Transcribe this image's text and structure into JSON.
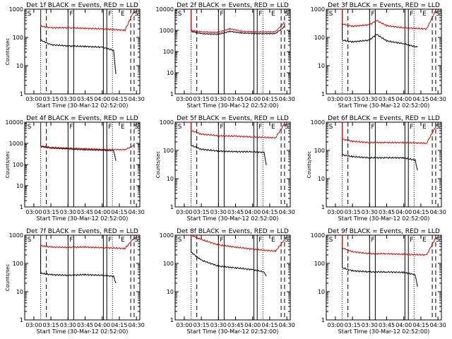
{
  "chart_data": [
    {
      "type": "line",
      "title": "Det 1f BLACK = Events, RED = LLD",
      "xlabel": "Start Time (30-Mar-12 02:52:00)",
      "ylabel": "Counts/sec",
      "yscale": "log",
      "ylim": [
        1,
        1000
      ],
      "xtick_labels": [
        "03:00",
        "03:15",
        "03:30",
        "03:45",
        "04:00",
        "04:15",
        "04:30"
      ],
      "ytick_labels": [
        "1",
        "10",
        "100",
        "1000"
      ],
      "markers": [
        {
          "label": "S",
          "x": "02:53"
        },
        {
          "label": "F",
          "x": "03:30"
        },
        {
          "label": "F",
          "x": "04:04"
        },
        {
          "label": "E",
          "x": "04:15"
        },
        {
          "label": "S",
          "x": "04:30"
        }
      ],
      "series": [
        {
          "name": "Events",
          "color": "#000000",
          "x": [
            "03:06",
            "03:15",
            "03:30",
            "03:45",
            "04:00",
            "04:10",
            "04:12"
          ],
          "values": [
            80,
            55,
            50,
            48,
            45,
            35,
            5
          ]
        },
        {
          "name": "LLD",
          "color": "#e00000",
          "x": [
            "03:06",
            "03:15",
            "03:30",
            "03:45",
            "04:00",
            "04:20",
            "04:28"
          ],
          "values": [
            250,
            220,
            220,
            210,
            200,
            180,
            900
          ]
        }
      ]
    },
    {
      "type": "line",
      "title": "Det 2f BLACK = Events, RED = LLD",
      "xlabel": "Start Time (30-Mar-12 02:52:00)",
      "ylabel": "",
      "yscale": "log",
      "ylim": [
        1,
        10000
      ],
      "xtick_labels": [
        "03:00",
        "03:15",
        "03:30",
        "03:45",
        "04:00",
        "04:15",
        "04:30"
      ],
      "ytick_labels": [
        "1",
        "10",
        "100",
        "1000",
        "10000"
      ],
      "markers": [
        {
          "label": "S",
          "x": "02:53"
        },
        {
          "label": "F",
          "x": "03:30"
        },
        {
          "label": "F",
          "x": "04:04"
        },
        {
          "label": "E",
          "x": "04:15"
        },
        {
          "label": "S",
          "x": "04:30"
        }
      ],
      "series": [
        {
          "name": "Events",
          "color": "#000000",
          "x": [
            "03:06",
            "03:15",
            "03:30",
            "03:40",
            "03:50",
            "04:05",
            "04:20",
            "04:28"
          ],
          "values": [
            900,
            700,
            650,
            900,
            750,
            700,
            700,
            1500
          ]
        },
        {
          "name": "LLD",
          "color": "#e00000",
          "x": [
            "03:06",
            "03:15",
            "03:30",
            "03:40",
            "03:50",
            "04:05",
            "04:20",
            "04:28"
          ],
          "values": [
            1000,
            850,
            800,
            1200,
            900,
            850,
            850,
            2500
          ]
        }
      ]
    },
    {
      "type": "line",
      "title": "Det 3f BLACK = Events, RED = LLD",
      "xlabel": "Start Time (30-Mar-12 02:52:00)",
      "ylabel": "",
      "yscale": "log",
      "ylim": [
        1,
        1000
      ],
      "xtick_labels": [
        "03:00",
        "03:15",
        "03:30",
        "03:45",
        "04:00",
        "04:15",
        "04:30"
      ],
      "ytick_labels": [
        "1",
        "10",
        "100",
        "1000"
      ],
      "markers": [
        {
          "label": "S",
          "x": "02:53"
        },
        {
          "label": "F",
          "x": "03:30"
        },
        {
          "label": "F",
          "x": "04:04"
        },
        {
          "label": "E",
          "x": "04:15"
        },
        {
          "label": "S",
          "x": "04:30"
        }
      ],
      "series": [
        {
          "name": "Events",
          "color": "#000000",
          "x": [
            "03:06",
            "03:15",
            "03:30",
            "03:36",
            "03:45",
            "04:00",
            "04:12"
          ],
          "values": [
            80,
            70,
            80,
            130,
            75,
            60,
            45
          ]
        },
        {
          "name": "LLD",
          "color": "#e00000",
          "x": [
            "03:06",
            "03:15",
            "03:30",
            "03:36",
            "03:45",
            "04:00",
            "04:20",
            "04:28"
          ],
          "values": [
            300,
            250,
            280,
            400,
            260,
            220,
            200,
            900
          ]
        }
      ]
    },
    {
      "type": "line",
      "title": "Det 4f BLACK = Events, RED = LLD",
      "xlabel": "Start Time (30-Mar-12 02:52:00)",
      "ylabel": "Counts/sec",
      "yscale": "log",
      "ylim": [
        1,
        10000
      ],
      "xtick_labels": [
        "03:00",
        "03:15",
        "03:30",
        "03:45",
        "04:00",
        "04:15",
        "04:30"
      ],
      "ytick_labels": [
        "1",
        "10",
        "100",
        "1000",
        "10000"
      ],
      "markers": [
        {
          "label": "S",
          "x": "02:53"
        },
        {
          "label": "F",
          "x": "03:30"
        },
        {
          "label": "F",
          "x": "04:04"
        },
        {
          "label": "E",
          "x": "04:15"
        },
        {
          "label": "S",
          "x": "04:30"
        }
      ],
      "series": [
        {
          "name": "Events",
          "color": "#000000",
          "x": [
            "03:06",
            "03:15",
            "03:30",
            "03:45",
            "04:00",
            "04:10",
            "04:12"
          ],
          "values": [
            700,
            600,
            550,
            500,
            480,
            450,
            150
          ]
        },
        {
          "name": "LLD",
          "color": "#e00000",
          "x": [
            "03:06",
            "03:15",
            "03:30",
            "03:45",
            "04:00",
            "04:20",
            "04:28"
          ],
          "values": [
            750,
            650,
            600,
            560,
            520,
            500,
            800
          ]
        }
      ]
    },
    {
      "type": "line",
      "title": "Det 5f BLACK = Events, RED = LLD",
      "xlabel": "Start Time (30-Mar-12 02:52:00)",
      "ylabel": "Counts/sec",
      "yscale": "log",
      "ylim": [
        1,
        1000
      ],
      "xtick_labels": [
        "03:00",
        "03:15",
        "03:30",
        "03:45",
        "04:00",
        "04:15",
        "04:30"
      ],
      "ytick_labels": [
        "1",
        "10",
        "100",
        "1000"
      ],
      "markers": [
        {
          "label": "S",
          "x": "02:53"
        },
        {
          "label": "F",
          "x": "03:30"
        },
        {
          "label": "F",
          "x": "04:04"
        },
        {
          "label": "E",
          "x": "04:15"
        },
        {
          "label": "S",
          "x": "04:30"
        }
      ],
      "series": [
        {
          "name": "Events",
          "color": "#000000",
          "x": [
            "03:06",
            "03:15",
            "03:30",
            "03:45",
            "04:00",
            "04:10",
            "04:12"
          ],
          "values": [
            150,
            110,
            95,
            90,
            90,
            85,
            30
          ]
        },
        {
          "name": "LLD",
          "color": "#e00000",
          "x": [
            "03:06",
            "03:15",
            "03:30",
            "03:45",
            "04:00",
            "04:20",
            "04:28"
          ],
          "values": [
            500,
            380,
            330,
            320,
            300,
            280,
            900
          ]
        }
      ]
    },
    {
      "type": "line",
      "title": "Det 6f BLACK = Events, RED = LLD",
      "xlabel": "Start Time (30-Mar-12 02:52:00)",
      "ylabel": "Counts/sec",
      "yscale": "log",
      "ylim": [
        1,
        1000
      ],
      "xtick_labels": [
        "03:00",
        "03:15",
        "03:30",
        "03:45",
        "04:00",
        "04:15",
        "04:30"
      ],
      "ytick_labels": [
        "1",
        "10",
        "100",
        "1000"
      ],
      "markers": [
        {
          "label": "S",
          "x": "02:53"
        },
        {
          "label": "F",
          "x": "03:30"
        },
        {
          "label": "F",
          "x": "04:04"
        },
        {
          "label": "E",
          "x": "04:15"
        },
        {
          "label": "S",
          "x": "04:30"
        }
      ],
      "series": [
        {
          "name": "Events",
          "color": "#000000",
          "x": [
            "03:06",
            "03:15",
            "03:30",
            "03:45",
            "04:00",
            "04:10",
            "04:12"
          ],
          "values": [
            70,
            60,
            55,
            55,
            55,
            45,
            20
          ]
        },
        {
          "name": "LLD",
          "color": "#e00000",
          "x": [
            "03:06",
            "03:15",
            "03:30",
            "03:45",
            "04:00",
            "04:20",
            "04:28"
          ],
          "values": [
            250,
            210,
            190,
            190,
            190,
            180,
            700
          ]
        }
      ]
    },
    {
      "type": "line",
      "title": "Det 7f BLACK = Events, RED = LLD",
      "xlabel": "Start Time (30-Mar-12 02:52:00)",
      "ylabel": "Counts/sec",
      "yscale": "log",
      "ylim": [
        1,
        1000
      ],
      "xtick_labels": [
        "03:00",
        "03:15",
        "03:30",
        "03:45",
        "04:00",
        "04:15",
        "04:30"
      ],
      "ytick_labels": [
        "1",
        "10",
        "100",
        "1000"
      ],
      "markers": [
        {
          "label": "S",
          "x": "02:53"
        },
        {
          "label": "F",
          "x": "03:30"
        },
        {
          "label": "F",
          "x": "04:04"
        },
        {
          "label": "E",
          "x": "04:15"
        },
        {
          "label": "S",
          "x": "04:30"
        }
      ],
      "series": [
        {
          "name": "Events",
          "color": "#000000",
          "x": [
            "03:06",
            "03:15",
            "03:30",
            "03:45",
            "04:00",
            "04:10",
            "04:12"
          ],
          "values": [
            45,
            40,
            38,
            40,
            38,
            35,
            20
          ]
        },
        {
          "name": "LLD",
          "color": "#e00000",
          "x": [
            "03:06",
            "03:15",
            "03:30",
            "03:45",
            "04:00",
            "04:20",
            "04:28"
          ],
          "values": [
            420,
            380,
            370,
            380,
            360,
            340,
            800
          ]
        }
      ]
    },
    {
      "type": "line",
      "title": "Det 8f BLACK = Events, RED = LLD",
      "xlabel": "Start Time (30-Mar-12 02:52:00)",
      "ylabel": "",
      "yscale": "log",
      "ylim": [
        1,
        1000
      ],
      "xtick_labels": [
        "03:00",
        "03:15",
        "03:30",
        "03:45",
        "04:00",
        "04:15",
        "04:30"
      ],
      "ytick_labels": [
        "1",
        "10",
        "100",
        "1000"
      ],
      "markers": [
        {
          "label": "S",
          "x": "02:53"
        },
        {
          "label": "F",
          "x": "03:30"
        },
        {
          "label": "F",
          "x": "04:04"
        },
        {
          "label": "E",
          "x": "04:15"
        },
        {
          "label": "S",
          "x": "04:30"
        }
      ],
      "series": [
        {
          "name": "Events",
          "color": "#000000",
          "x": [
            "03:06",
            "03:15",
            "03:30",
            "03:45",
            "04:00",
            "04:10",
            "04:12"
          ],
          "values": [
            250,
            130,
            80,
            70,
            60,
            50,
            35
          ]
        },
        {
          "name": "LLD",
          "color": "#e00000",
          "x": [
            "03:06",
            "03:15",
            "03:30",
            "03:45",
            "04:00",
            "04:20",
            "04:28"
          ],
          "values": [
            1000,
            700,
            450,
            380,
            320,
            270,
            700
          ]
        }
      ]
    },
    {
      "type": "line",
      "title": "Det 9f BLACK = Events, RED = LLD",
      "xlabel": "Start Time (30-Mar-12 02:52:00)",
      "ylabel": "",
      "yscale": "log",
      "ylim": [
        1,
        1000
      ],
      "xtick_labels": [
        "03:00",
        "03:15",
        "03:30",
        "03:45",
        "04:00",
        "04:15",
        "04:30"
      ],
      "ytick_labels": [
        "1",
        "10",
        "100",
        "1000"
      ],
      "markers": [
        {
          "label": "S",
          "x": "02:53"
        },
        {
          "label": "F",
          "x": "03:30"
        },
        {
          "label": "F",
          "x": "04:04"
        },
        {
          "label": "E",
          "x": "04:15"
        },
        {
          "label": "S",
          "x": "04:30"
        }
      ],
      "series": [
        {
          "name": "Events",
          "color": "#000000",
          "x": [
            "03:06",
            "03:15",
            "03:30",
            "03:45",
            "04:00",
            "04:10",
            "04:12"
          ],
          "values": [
            70,
            55,
            50,
            50,
            48,
            40,
            15
          ]
        },
        {
          "name": "LLD",
          "color": "#e00000",
          "x": [
            "03:06",
            "03:15",
            "03:30",
            "03:45",
            "04:00",
            "04:20",
            "04:28"
          ],
          "values": [
            350,
            260,
            220,
            220,
            210,
            200,
            800
          ]
        }
      ]
    }
  ]
}
